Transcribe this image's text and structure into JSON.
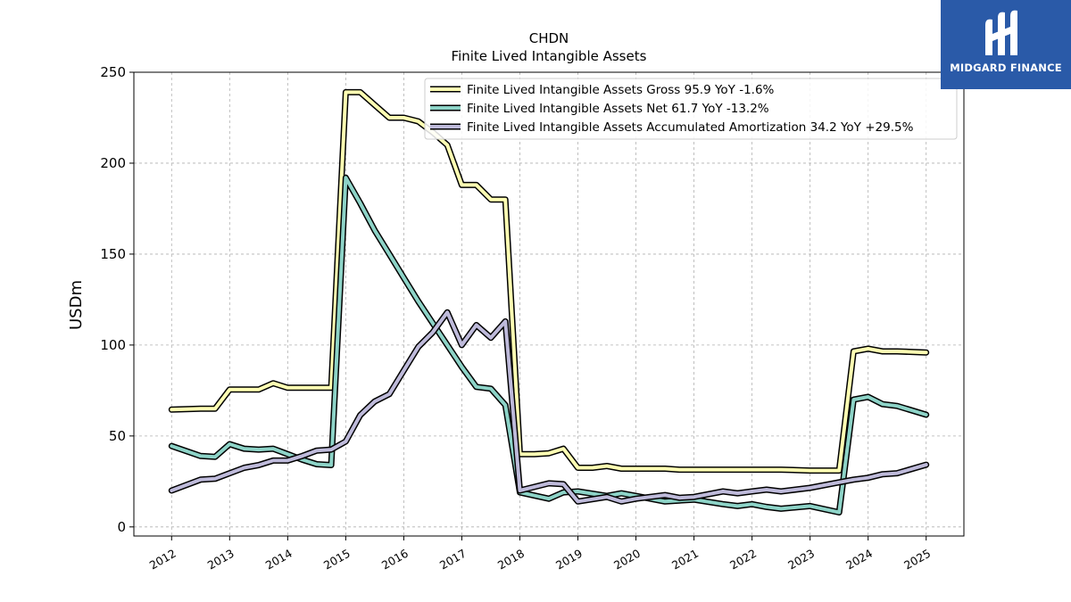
{
  "brand": {
    "name": "MIDGARD FINANCE",
    "logo_icon": "midgard-m-logo-icon",
    "background": "#2a5aa8"
  },
  "chart_data": {
    "type": "line",
    "title": "CHDN",
    "subtitle": "Finite Lived Intangible Assets",
    "xlabel": "",
    "ylabel": "USDm",
    "ylim": [
      -5,
      250
    ],
    "yticks": [
      0,
      50,
      100,
      150,
      200,
      250
    ],
    "xlim": [
      2011.35,
      2025.65
    ],
    "xticks": [
      "2012",
      "2013",
      "2014",
      "2015",
      "2016",
      "2017",
      "2018",
      "2019",
      "2020",
      "2021",
      "2022",
      "2023",
      "2024",
      "2025"
    ],
    "grid": true,
    "legend_position": "top-right",
    "series": [
      {
        "name": "Finite Lived Intangible Assets Gross  95.9 YoY -1.6%",
        "color": "#ffffb3",
        "x": [
          2012.0,
          2012.5,
          2012.75,
          2013.0,
          2013.5,
          2013.75,
          2014.0,
          2014.5,
          2014.75,
          2015.0,
          2015.25,
          2015.5,
          2015.75,
          2016.0,
          2016.25,
          2016.5,
          2016.75,
          2017.0,
          2017.25,
          2017.5,
          2017.75,
          2018.0,
          2018.25,
          2018.5,
          2018.75,
          2019.0,
          2019.25,
          2019.5,
          2019.75,
          2020.0,
          2020.5,
          2020.75,
          2021.0,
          2021.5,
          2022.0,
          2022.5,
          2023.0,
          2023.5,
          2023.75,
          2024.0,
          2024.25,
          2024.5,
          2025.0
        ],
        "values": [
          64.5,
          65.0,
          65.0,
          75.5,
          75.5,
          79.0,
          76.5,
          76.5,
          76.5,
          239.0,
          239.0,
          232.0,
          225.0,
          225.0,
          223.0,
          217.0,
          210.0,
          188.0,
          188.0,
          180.0,
          180.0,
          40.0,
          40.0,
          40.5,
          43.0,
          32.5,
          32.5,
          33.5,
          32.0,
          32.0,
          32.0,
          31.5,
          31.5,
          31.5,
          31.5,
          31.5,
          31.0,
          31.0,
          96.5,
          98.0,
          96.5,
          96.5,
          95.9
        ]
      },
      {
        "name": "Finite Lived Intangible Assets Net  61.7 YoY -13.2%",
        "color": "#8dd3c7",
        "x": [
          2012.0,
          2012.5,
          2012.75,
          2013.0,
          2013.25,
          2013.5,
          2013.75,
          2014.0,
          2014.25,
          2014.5,
          2014.75,
          2015.0,
          2015.25,
          2015.5,
          2015.75,
          2016.0,
          2016.25,
          2016.5,
          2016.75,
          2017.0,
          2017.25,
          2017.5,
          2017.75,
          2018.0,
          2018.5,
          2018.75,
          2019.0,
          2019.5,
          2019.75,
          2020.0,
          2020.5,
          2020.75,
          2021.0,
          2021.5,
          2021.75,
          2022.0,
          2022.25,
          2022.5,
          2023.0,
          2023.5,
          2023.75,
          2024.0,
          2024.25,
          2024.5,
          2025.0
        ],
        "values": [
          44.5,
          39.0,
          38.5,
          45.5,
          43.0,
          42.5,
          43.0,
          40.0,
          37.0,
          34.5,
          34.0,
          192.0,
          178.0,
          163.0,
          150.0,
          137.0,
          124.0,
          112.0,
          100.0,
          88.0,
          77.0,
          76.0,
          67.0,
          19.0,
          15.5,
          19.0,
          19.5,
          17.0,
          18.5,
          17.0,
          14.0,
          14.5,
          15.0,
          12.5,
          11.5,
          12.5,
          11.0,
          10.0,
          11.5,
          8.0,
          70.0,
          71.5,
          67.5,
          66.5,
          61.7
        ]
      },
      {
        "name": "Finite Lived Intangible Assets Accumulated Amortization  34.2 YoY +29.5%",
        "color": "#bebada",
        "x": [
          2012.0,
          2012.5,
          2012.75,
          2013.0,
          2013.25,
          2013.5,
          2013.75,
          2014.0,
          2014.25,
          2014.5,
          2014.75,
          2015.0,
          2015.25,
          2015.5,
          2015.75,
          2016.0,
          2016.25,
          2016.5,
          2016.75,
          2017.0,
          2017.25,
          2017.5,
          2017.75,
          2018.0,
          2018.5,
          2018.75,
          2019.0,
          2019.5,
          2019.75,
          2020.0,
          2020.5,
          2020.75,
          2021.0,
          2021.5,
          2021.75,
          2022.0,
          2022.25,
          2022.5,
          2023.0,
          2023.5,
          2023.75,
          2024.0,
          2024.25,
          2024.5,
          2025.0
        ],
        "values": [
          20.0,
          26.0,
          26.5,
          29.5,
          32.5,
          34.0,
          36.5,
          36.5,
          39.0,
          42.0,
          42.5,
          47.0,
          61.5,
          69.0,
          73.0,
          86.0,
          99.0,
          107.0,
          118.0,
          100.0,
          111.0,
          104.0,
          113.0,
          20.0,
          24.0,
          23.5,
          14.0,
          16.5,
          14.0,
          15.5,
          17.5,
          16.0,
          16.5,
          19.5,
          18.5,
          19.5,
          20.5,
          19.5,
          21.5,
          24.5,
          26.0,
          27.0,
          29.0,
          29.5,
          34.2
        ]
      }
    ]
  }
}
